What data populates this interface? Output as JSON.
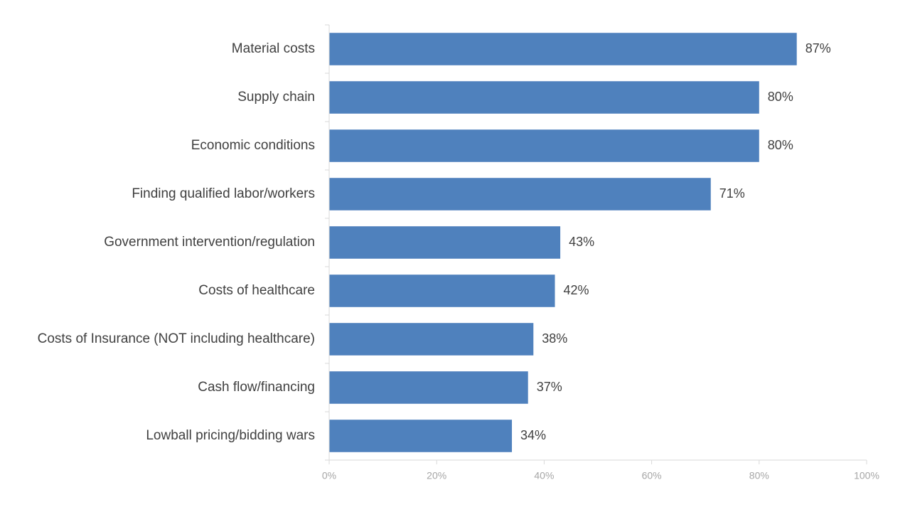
{
  "chart_data": {
    "type": "bar",
    "orientation": "horizontal",
    "categories": [
      "Material costs",
      "Supply chain",
      "Economic conditions",
      "Finding qualified labor/workers",
      "Government intervention/regulation",
      "Costs of healthcare",
      "Costs of Insurance (NOT including healthcare)",
      "Cash flow/financing",
      "Lowball pricing/bidding wars"
    ],
    "values": [
      87,
      80,
      80,
      71,
      43,
      42,
      38,
      37,
      34
    ],
    "value_labels": [
      "87%",
      "80%",
      "80%",
      "71%",
      "43%",
      "42%",
      "38%",
      "37%",
      "34%"
    ],
    "x_ticks": [
      0,
      20,
      40,
      60,
      80,
      100
    ],
    "x_tick_labels": [
      "0%",
      "20%",
      "40%",
      "60%",
      "80%",
      "100%"
    ],
    "xlim": [
      0,
      100
    ],
    "grid": false,
    "legend": "none",
    "title": "",
    "xlabel": "",
    "ylabel": ""
  },
  "colors": {
    "bar": "#4f81bd",
    "axis": "#d9d9d9",
    "label_text": "#404040",
    "tick_text": "#a6a6a6"
  }
}
